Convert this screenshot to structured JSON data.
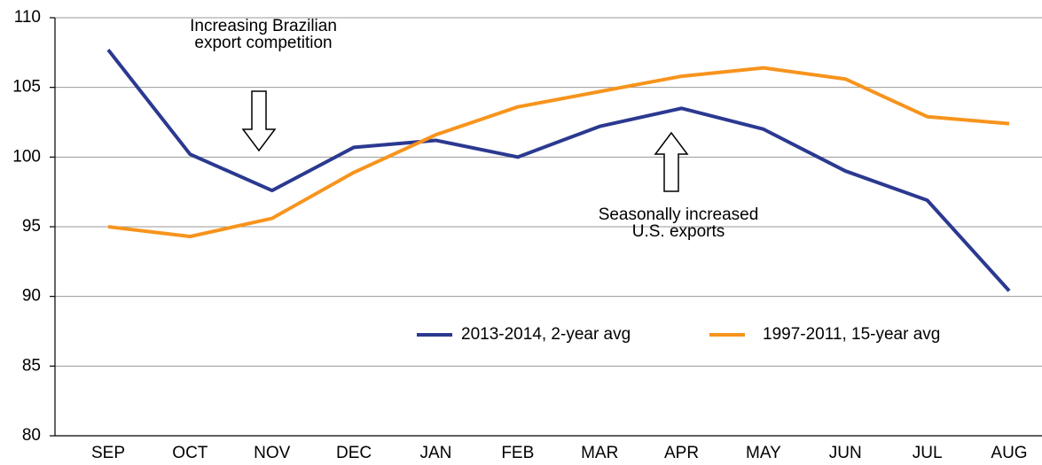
{
  "chart_data": {
    "type": "line",
    "categories": [
      "SEP",
      "OCT",
      "NOV",
      "DEC",
      "JAN",
      "FEB",
      "MAR",
      "APR",
      "MAY",
      "JUN",
      "JUL",
      "AUG"
    ],
    "series": [
      {
        "name": "2013-2014, 2-year avg",
        "color": "#2b3990",
        "values": [
          107.7,
          100.2,
          97.6,
          100.7,
          101.2,
          100.0,
          102.2,
          103.5,
          102.0,
          99.0,
          96.9,
          90.4
        ]
      },
      {
        "name": "1997-2011, 15-year avg",
        "color": "#f7941d",
        "values": [
          95.0,
          94.3,
          95.6,
          98.9,
          101.6,
          103.6,
          104.7,
          105.8,
          106.4,
          105.6,
          102.9,
          102.4
        ]
      }
    ],
    "ylim": [
      80,
      110
    ],
    "yticks": [
      80,
      85,
      90,
      95,
      100,
      105,
      110
    ],
    "grid": true,
    "annotations": [
      {
        "lines": [
          "Increasing Brazilian",
          "export competition"
        ],
        "arrow": "down"
      },
      {
        "lines": [
          "Seasonally increased",
          "U.S. exports"
        ],
        "arrow": "up"
      }
    ]
  }
}
